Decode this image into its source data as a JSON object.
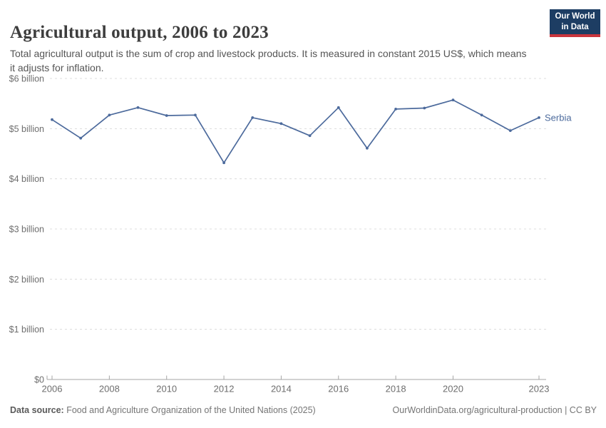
{
  "header": {
    "title": "Agricultural output, 2006 to 2023",
    "subtitle": "Total agricultural output is the sum of crop and livestock products. It is measured in constant 2015 US$, which means it adjusts for inflation.",
    "logo": {
      "line1": "Our World",
      "line2": "in Data",
      "bg_color": "#1d3d63",
      "stripe_color": "#c9353d"
    }
  },
  "chart_data": {
    "type": "line",
    "title": "Agricultural output, 2006 to 2023",
    "x": [
      2006,
      2007,
      2008,
      2009,
      2010,
      2011,
      2012,
      2013,
      2014,
      2015,
      2016,
      2017,
      2018,
      2019,
      2020,
      2021,
      2022,
      2023
    ],
    "series": [
      {
        "name": "Serbia",
        "values": [
          5.18,
          4.81,
          5.27,
          5.42,
          5.26,
          5.27,
          4.32,
          5.22,
          5.1,
          4.86,
          5.42,
          4.61,
          5.39,
          5.41,
          5.57,
          5.27,
          4.96,
          5.22
        ]
      }
    ],
    "values_unit": "billion constant 2015 US$",
    "ylim": [
      0,
      6
    ],
    "yticks": [
      {
        "value": 0,
        "label": "$0"
      },
      {
        "value": 1,
        "label": "$1 billion"
      },
      {
        "value": 2,
        "label": "$2 billion"
      },
      {
        "value": 3,
        "label": "$3 billion"
      },
      {
        "value": 4,
        "label": "$4 billion"
      },
      {
        "value": 5,
        "label": "$5 billion"
      },
      {
        "value": 6,
        "label": "$6 billion"
      }
    ],
    "xticks": [
      2006,
      2008,
      2010,
      2012,
      2014,
      2016,
      2018,
      2020,
      2023
    ],
    "grid": true,
    "legend_position": "end-of-line",
    "line_color": "#4C6A9C",
    "grid_color": "#dcdcdc",
    "axis_color": "#a5a5a5",
    "tick_label_color": "#6e6e6e"
  },
  "footer": {
    "source_label": "Data source:",
    "source_text": " Food and Agriculture Organization of the United Nations (2025)",
    "link_text": "OurWorldinData.org/agricultural-production | CC BY"
  }
}
